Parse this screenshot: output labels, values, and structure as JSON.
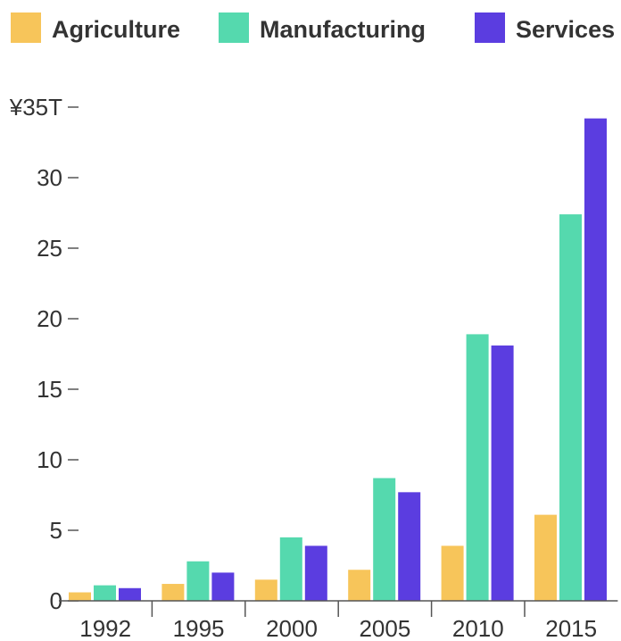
{
  "chart_data": {
    "type": "bar",
    "title": "",
    "xlabel": "",
    "ylabel": "",
    "categories": [
      "1992",
      "1995",
      "2000",
      "2005",
      "2010",
      "2015"
    ],
    "series": [
      {
        "name": "Agriculture",
        "color": "#F7C55A",
        "values": [
          0.6,
          1.2,
          1.5,
          2.2,
          3.9,
          6.1
        ]
      },
      {
        "name": "Manufacturing",
        "color": "#55D9AE",
        "values": [
          1.1,
          2.8,
          4.5,
          8.7,
          18.9,
          27.4
        ]
      },
      {
        "name": "Services",
        "color": "#5B3DE0",
        "values": [
          0.9,
          2.0,
          3.9,
          7.7,
          18.1,
          34.2
        ]
      }
    ],
    "ylim": [
      0,
      35
    ],
    "yticks": [
      {
        "value": 0,
        "label": "0"
      },
      {
        "value": 5,
        "label": "5"
      },
      {
        "value": 10,
        "label": "10"
      },
      {
        "value": 15,
        "label": "15"
      },
      {
        "value": 20,
        "label": "20"
      },
      {
        "value": 25,
        "label": "25"
      },
      {
        "value": 30,
        "label": "30"
      },
      {
        "value": 35,
        "label": "¥35T"
      }
    ],
    "legend_position": "top",
    "grid": false
  }
}
